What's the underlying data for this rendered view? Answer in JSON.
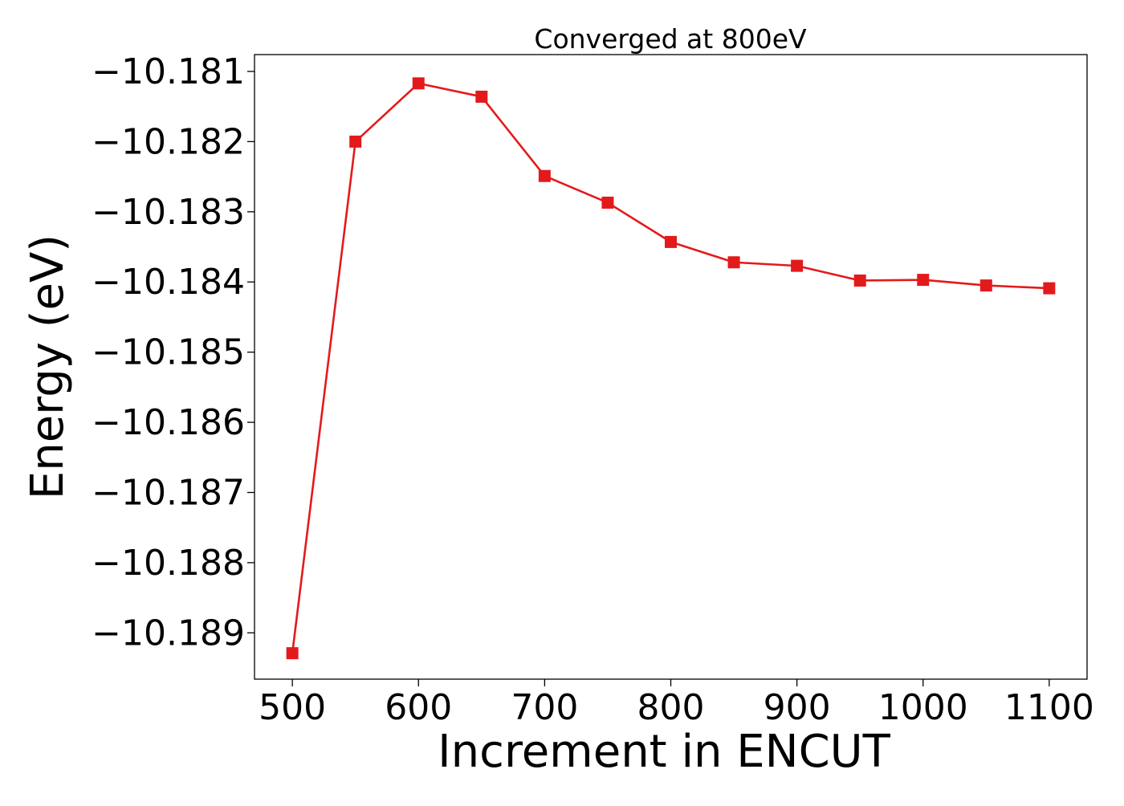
{
  "chart_data": {
    "type": "line",
    "title": "Converged at 800eV",
    "xlabel": "Increment in ENCUT",
    "ylabel": "Energy (eV)",
    "x": [
      500,
      550,
      600,
      650,
      700,
      750,
      800,
      850,
      900,
      950,
      1000,
      1050,
      1100
    ],
    "series": [
      {
        "values": [
          -10.18929,
          -10.182,
          -10.18117,
          -10.18136,
          -10.18249,
          -10.18287,
          -10.18343,
          -10.18372,
          -10.18377,
          -10.18398,
          -10.18397,
          -10.18405,
          -10.18409
        ],
        "color": "#e31a1c",
        "marker": "square"
      }
    ],
    "xlim": [
      470,
      1130
    ],
    "ylim": [
      -10.18966,
      -10.18076
    ],
    "xticks": [
      500,
      600,
      700,
      800,
      900,
      1000,
      1100
    ],
    "xtick_labels": [
      "500",
      "600",
      "700",
      "800",
      "900",
      "1000",
      "1100"
    ],
    "yticks": [
      -10.181,
      -10.182,
      -10.183,
      -10.184,
      -10.185,
      -10.186,
      -10.187,
      -10.188,
      -10.189
    ],
    "ytick_labels": [
      "−10.181",
      "−10.182",
      "−10.183",
      "−10.184",
      "−10.185",
      "−10.186",
      "−10.187",
      "−10.188",
      "−10.189"
    ],
    "grid": false,
    "legend": "none"
  }
}
